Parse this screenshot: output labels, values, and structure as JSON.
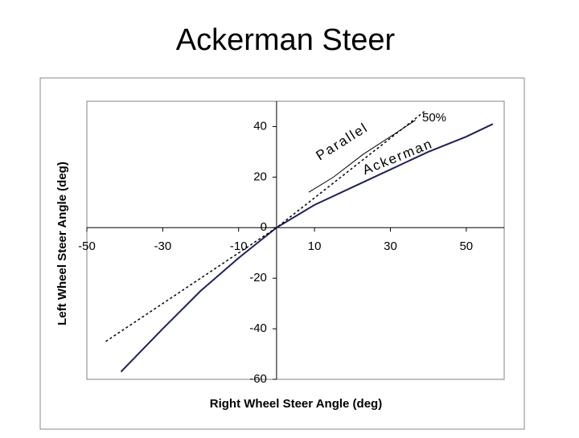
{
  "chart_data": {
    "type": "line",
    "title": "Ackerman Steer",
    "x_label": "Right Wheel Steer Angle (deg)",
    "y_label": "Left Wheel Steer Angle (deg)",
    "xlim": [
      -50,
      60
    ],
    "ylim": [
      -60,
      50
    ],
    "xticks": [
      -50,
      -30,
      -10,
      10,
      30,
      50
    ],
    "yticks": [
      -60,
      -40,
      -20,
      0,
      20,
      40
    ],
    "grid": false,
    "series": [
      {
        "name": "Ackerman",
        "color": "#1f1f5f",
        "line_style": "solid",
        "x": [
          -41,
          -30,
          -20,
          -10,
          0,
          10,
          20,
          30,
          40,
          50,
          57
        ],
        "values": [
          -57,
          -40,
          -25,
          -12,
          0,
          9,
          16,
          23,
          30,
          36,
          41
        ]
      },
      {
        "name": "50%",
        "color": "#000000",
        "line_style": "dotted",
        "x": [
          -45,
          0,
          39
        ],
        "values": [
          -45,
          0,
          46
        ]
      },
      {
        "name": "Parallel",
        "color": "#000000",
        "line_style": "solid",
        "x": [
          8.5,
          15,
          22.8,
          30,
          36.6
        ],
        "values": [
          14,
          20,
          29,
          36,
          42.5
        ]
      }
    ]
  }
}
